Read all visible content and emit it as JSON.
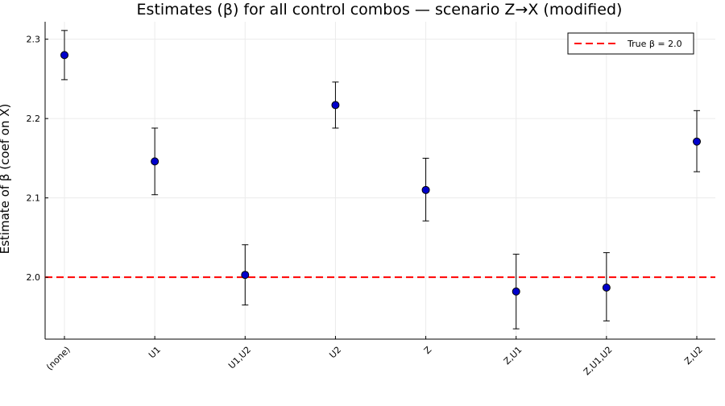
{
  "chart_data": {
    "type": "scatter",
    "title": "Estimates (β) for all control combos — scenario Z→X (modified)",
    "xlabel": "",
    "ylabel": "Estimate of β (coef on X)",
    "categories": [
      "(none)",
      "U1",
      "U1,U2",
      "U2",
      "Z",
      "Z,U1",
      "Z,U1,U2",
      "Z,U2"
    ],
    "series": [
      {
        "values": [
          2.28,
          2.146,
          2.003,
          2.217,
          2.11,
          1.982,
          1.987,
          2.171
        ],
        "lower": [
          2.249,
          2.104,
          1.965,
          2.188,
          2.071,
          1.935,
          1.945,
          2.133
        ],
        "upper": [
          2.311,
          2.188,
          2.041,
          2.246,
          2.15,
          2.029,
          2.031,
          2.21
        ],
        "color": "#0000cc",
        "errorbar_color": "#000000"
      }
    ],
    "reference_line": {
      "value": 2.0,
      "label": "True β = 2.0",
      "color": "#ff0000",
      "style": "dashed"
    },
    "yticks": [
      "2.0",
      "2.1",
      "2.2",
      "2.3"
    ],
    "ylim": [
      1.922,
      2.322
    ],
    "grid": true,
    "legend_position": "top-right"
  }
}
